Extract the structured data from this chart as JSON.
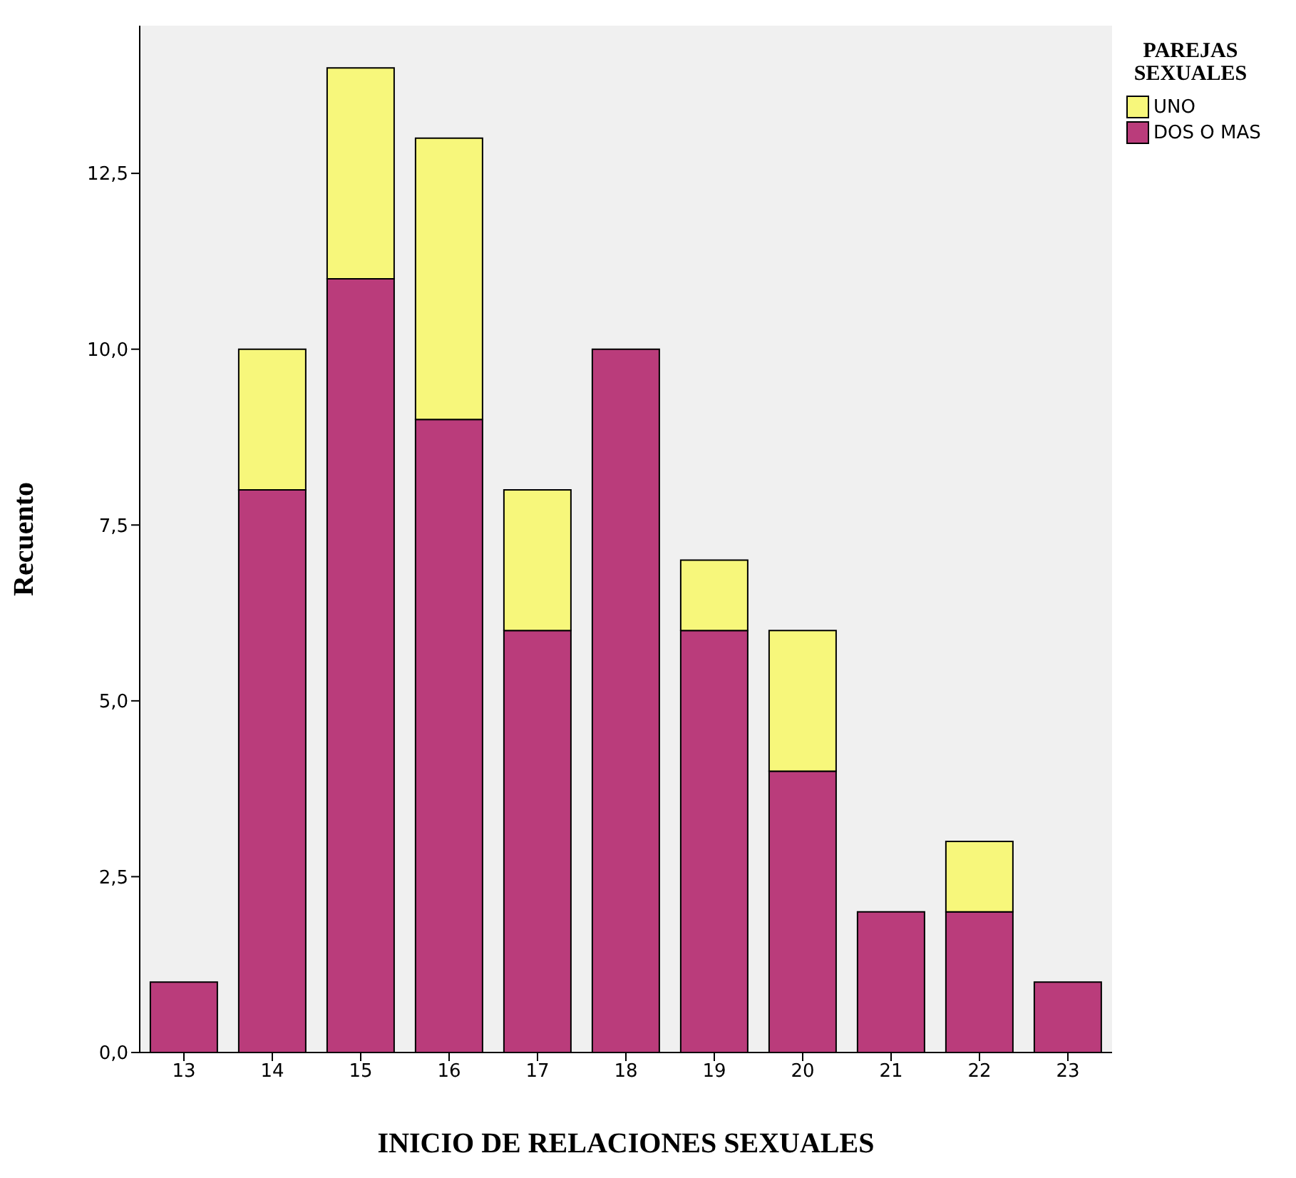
{
  "chart_data": {
    "type": "bar",
    "stacked": true,
    "xlabel": "INICIO DE RELACIONES SEXUALES",
    "ylabel": "Recuento",
    "legend_title": "PAREJAS SEXUALES",
    "legend": "top right",
    "categories": [
      "13",
      "14",
      "15",
      "16",
      "17",
      "18",
      "19",
      "20",
      "21",
      "22",
      "23"
    ],
    "series": [
      {
        "name": "DOS O MAS",
        "color": "#ba3c7b",
        "values": [
          1,
          8,
          11,
          9,
          6,
          10,
          6,
          4,
          2,
          2,
          1
        ]
      },
      {
        "name": "UNO",
        "color": "#f7f77b",
        "values": [
          0,
          2,
          3,
          4,
          2,
          0,
          1,
          2,
          0,
          1,
          0
        ]
      }
    ],
    "ylim": [
      0,
      14.6
    ],
    "yticks": [
      {
        "value": 0,
        "label": "0,0"
      },
      {
        "value": 2.5,
        "label": "2,5"
      },
      {
        "value": 5,
        "label": "5,0"
      },
      {
        "value": 7.5,
        "label": "7,5"
      },
      {
        "value": 10,
        "label": "10,0"
      },
      {
        "value": 12.5,
        "label": "12,5"
      }
    ]
  }
}
